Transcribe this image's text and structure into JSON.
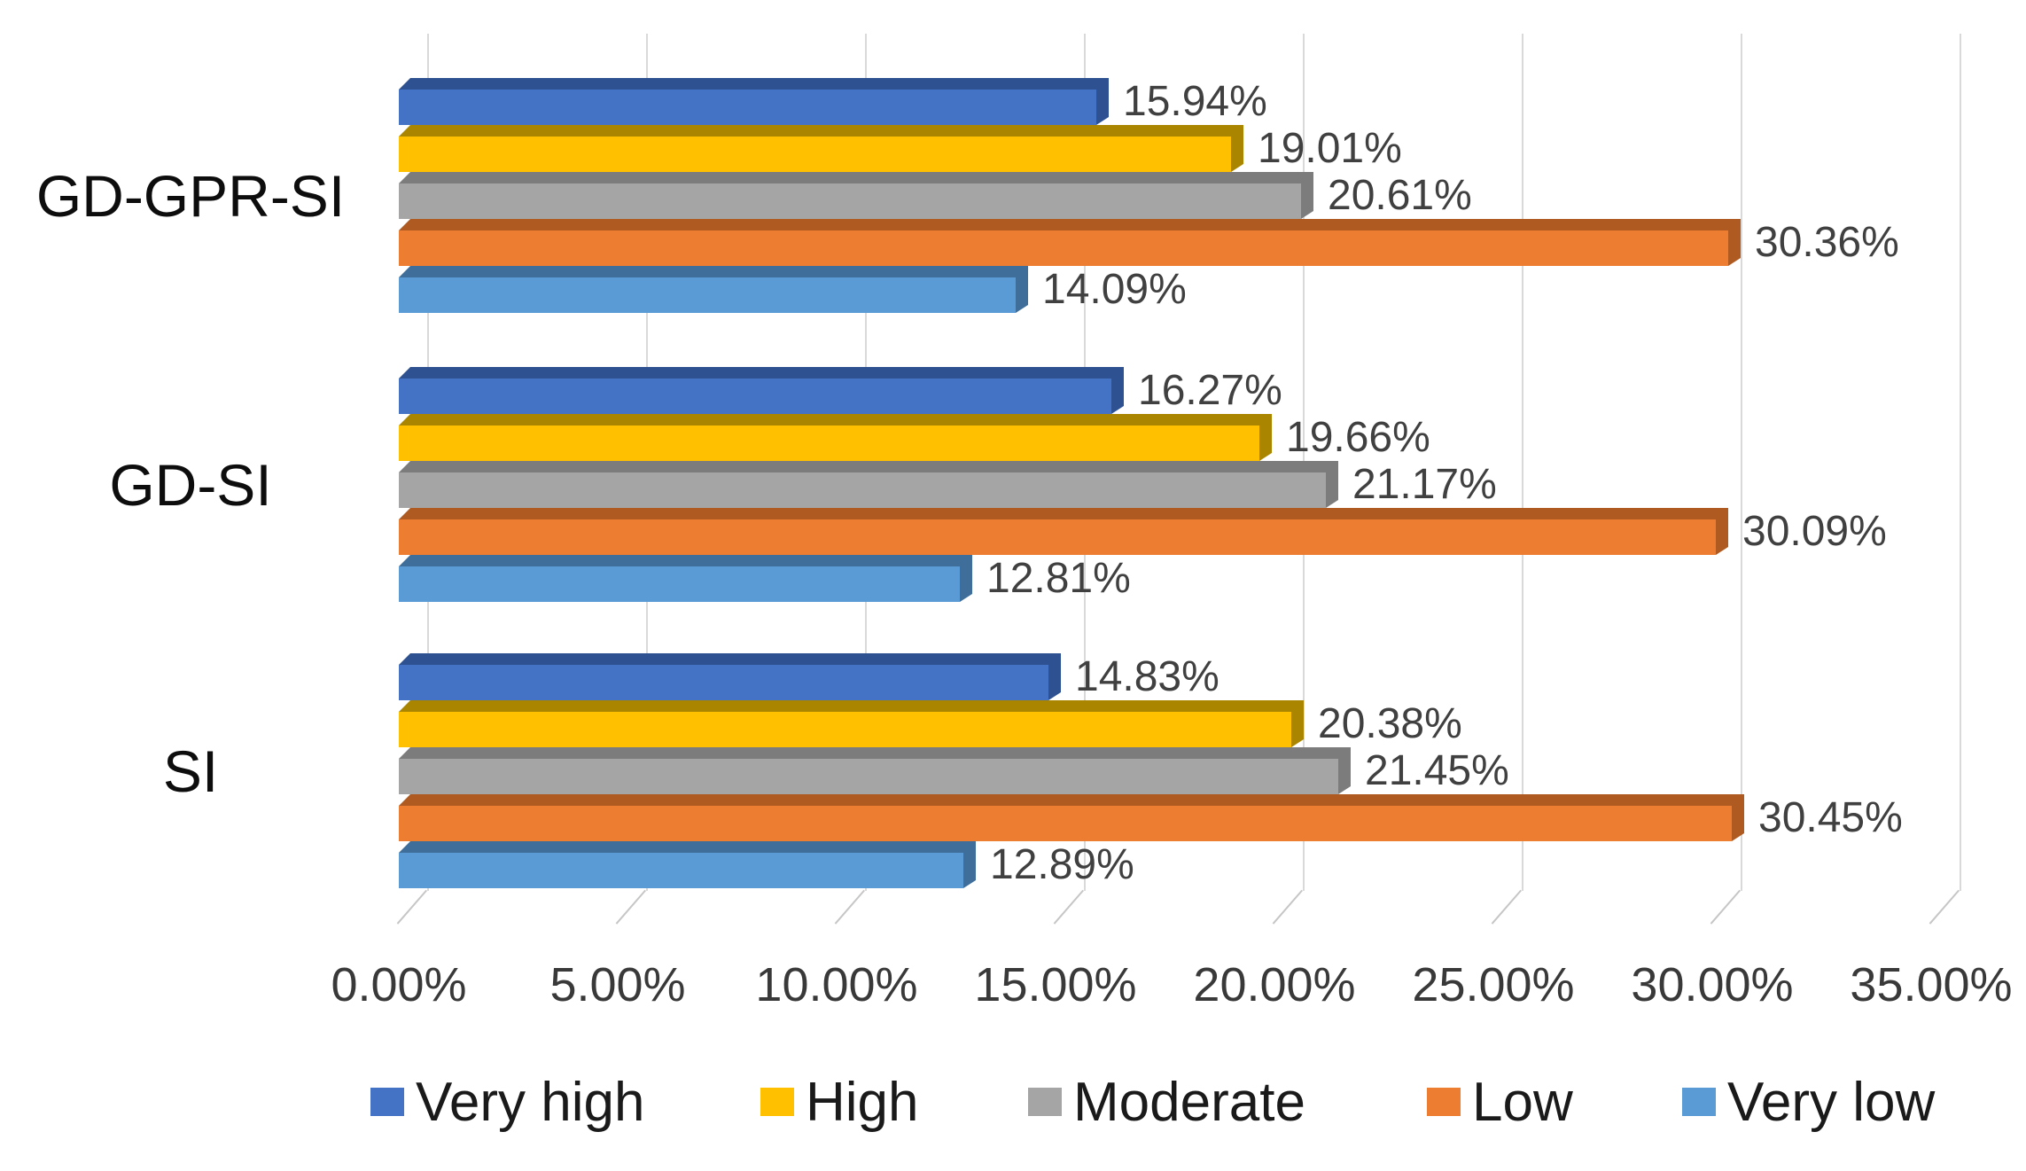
{
  "chart_data": {
    "type": "bar",
    "orientation": "horizontal",
    "title": "",
    "xlabel": "",
    "ylabel": "",
    "grid": true,
    "categories": [
      "GD-GPR-SI",
      "GD-SI",
      "SI"
    ],
    "series": [
      {
        "name": "Very high",
        "color": "#4472C4",
        "color_dark": "#2E5291",
        "values": [
          15.94,
          16.27,
          14.83
        ],
        "labels": [
          "15.94%",
          "16.27%",
          "14.83%"
        ]
      },
      {
        "name": "High",
        "color": "#FFC000",
        "color_dark": "#A98500",
        "values": [
          19.01,
          19.66,
          20.38
        ],
        "labels": [
          "19.01%",
          "19.66%",
          "20.38%"
        ]
      },
      {
        "name": "Moderate",
        "color": "#A5A5A5",
        "color_dark": "#7C7C7C",
        "values": [
          20.61,
          21.17,
          21.45
        ],
        "labels": [
          "20.61%",
          "21.17%",
          "21.45%"
        ]
      },
      {
        "name": "Low",
        "color": "#ED7D31",
        "color_dark": "#AE5A21",
        "values": [
          30.36,
          30.09,
          30.45
        ],
        "labels": [
          "30.36%",
          "30.09%",
          "30.45%"
        ]
      },
      {
        "name": "Very low",
        "color": "#5B9BD5",
        "color_dark": "#3E6E99",
        "values": [
          14.09,
          12.81,
          12.89
        ],
        "labels": [
          "14.09%",
          "12.81%",
          "12.89%"
        ]
      }
    ],
    "x_axis": {
      "min": 0,
      "max": 35,
      "step": 5,
      "ticks": [
        "0.00%",
        "5.00%",
        "10.00%",
        "15.00%",
        "20.00%",
        "25.00%",
        "30.00%",
        "35.00%"
      ]
    },
    "legend": {
      "position": "bottom",
      "items": [
        "Very high",
        "High",
        "Moderate",
        "Low",
        "Very low"
      ]
    },
    "style_colors": {
      "gridline": "#D9D9D9",
      "tick": "#C6C6C6",
      "value_label_text": "#404040",
      "axis_label_text": "#393939",
      "category_label_text": "#0d0d0d",
      "legend_text": "#1a1a1a",
      "background": "#ffffff"
    }
  }
}
